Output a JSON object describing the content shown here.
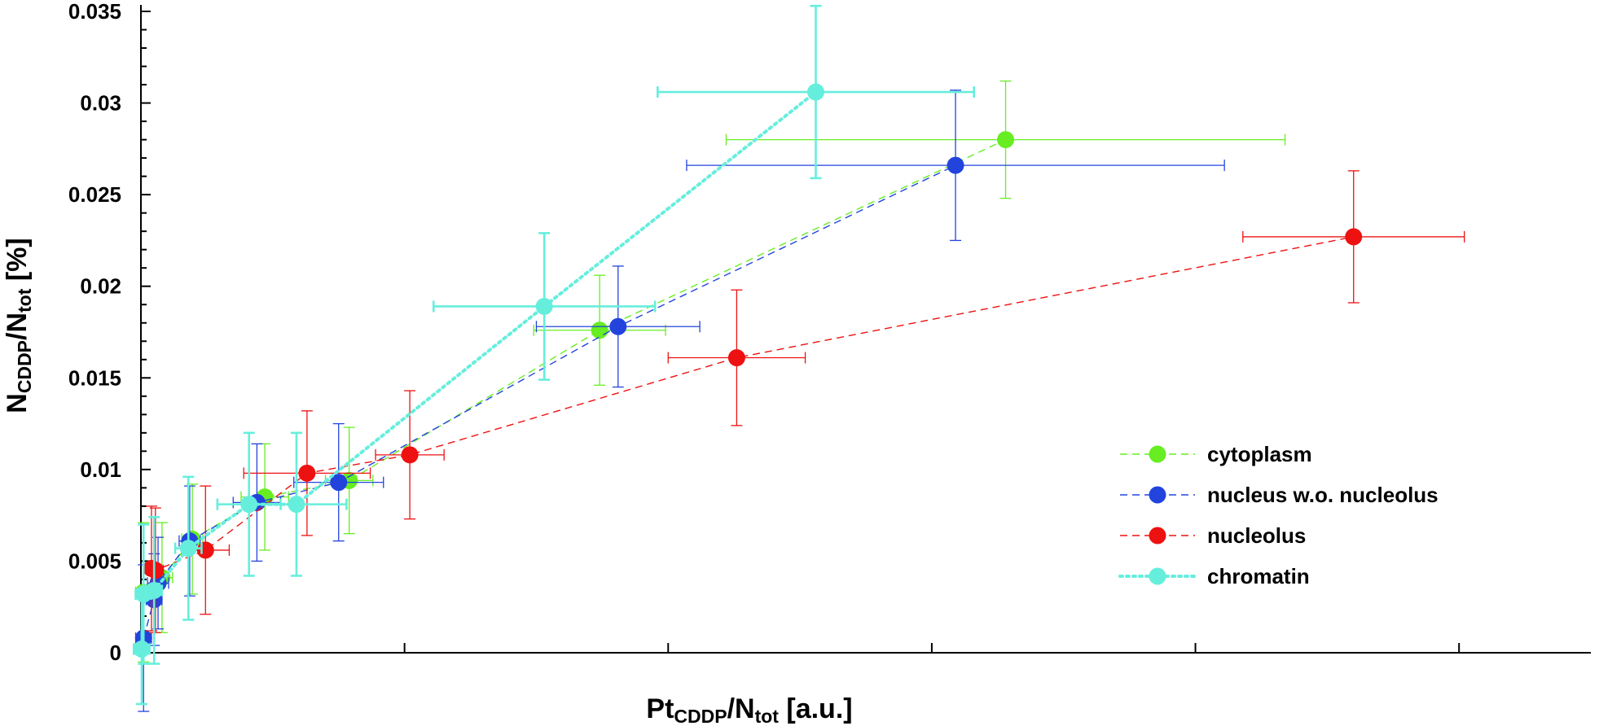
{
  "chart_data": {
    "type": "scatter",
    "title": "",
    "xlabel": {
      "base": "Pt",
      "sub": "CDDP",
      "mid": "/N",
      "sub2": "tot",
      "tail": " [a.u.]"
    },
    "ylabel": {
      "base": "N",
      "sub": "CDDP",
      "mid": "/N",
      "sub2": "tot",
      "tail": " [%]"
    },
    "xlim": [
      0,
      550
    ],
    "ylim": [
      0,
      0.035
    ],
    "x_ticks": [
      0,
      100,
      200,
      300,
      400,
      500
    ],
    "y_ticks": [
      0,
      0.005,
      0.01,
      0.015,
      0.02,
      0.025,
      0.03,
      0.035
    ],
    "y_tick_labels": [
      "0",
      "0.005",
      "0.01",
      "0.015",
      "0.02",
      "0.025",
      "0.03",
      "0.035"
    ],
    "grid": false,
    "legend_position": "right",
    "series": [
      {
        "name": "cytoplasm",
        "color": "#66ee22",
        "line": "dashed",
        "points": [
          {
            "x": 1,
            "y": 0.0033,
            "xerr": 3,
            "yerr": 0.0038
          },
          {
            "x": 8,
            "y": 0.0041,
            "xerr": 4,
            "yerr": 0.003
          },
          {
            "x": 19.5,
            "y": 0.0062,
            "xerr": 4,
            "yerr": 0.003
          },
          {
            "x": 47,
            "y": 0.0085,
            "xerr": 9,
            "yerr": 0.0029
          },
          {
            "x": 79,
            "y": 0.0094,
            "xerr": 9,
            "yerr": 0.0029
          },
          {
            "x": 174,
            "y": 0.0176,
            "xerr": 25,
            "yerr": 0.003
          },
          {
            "x": 328,
            "y": 0.028,
            "xerr": 106,
            "yerr": 0.0032
          }
        ]
      },
      {
        "name": "nucleus w.o. nucleolus",
        "color": "#2244dd",
        "line": "dashed",
        "points": [
          {
            "x": 1,
            "y": 0.0008,
            "xerr": 3,
            "yerr": 0.004
          },
          {
            "x": 5,
            "y": 0.0029,
            "xerr": 3,
            "yerr": 0.0025
          },
          {
            "x": 6.5,
            "y": 0.0038,
            "xerr": 4,
            "yerr": 0.0025
          },
          {
            "x": 18.5,
            "y": 0.0061,
            "xerr": 4,
            "yerr": 0.003
          },
          {
            "x": 44,
            "y": 0.0082,
            "xerr": 9,
            "yerr": 0.0032
          },
          {
            "x": 75,
            "y": 0.0093,
            "xerr": 17,
            "yerr": 0.0032
          },
          {
            "x": 181,
            "y": 0.0178,
            "xerr": 31,
            "yerr": 0.0033
          },
          {
            "x": 309,
            "y": 0.0266,
            "xerr": 102,
            "yerr": 0.0041
          }
        ]
      },
      {
        "name": "nucleolus",
        "color": "#ee1111",
        "line": "dashed",
        "points": [
          {
            "x": 4,
            "y": 0.0046,
            "xerr": 3,
            "yerr": 0.0034
          },
          {
            "x": 5.5,
            "y": 0.0045,
            "xerr": 3,
            "yerr": 0.0034
          },
          {
            "x": 24.5,
            "y": 0.0056,
            "xerr": 9,
            "yerr": 0.0035
          },
          {
            "x": 63,
            "y": 0.0098,
            "xerr": 24,
            "yerr": 0.0034
          },
          {
            "x": 102,
            "y": 0.0108,
            "xerr": 13,
            "yerr": 0.0035
          },
          {
            "x": 226,
            "y": 0.0161,
            "xerr": 26,
            "yerr": 0.0037
          },
          {
            "x": 460,
            "y": 0.0227,
            "xerr": 42,
            "yerr": 0.0036
          }
        ]
      },
      {
        "name": "chromatin",
        "color": "#66eedd",
        "line": "dotted",
        "points": [
          {
            "x": 0.3,
            "y": 0.0002,
            "xerr": 3,
            "yerr": 0.003
          },
          {
            "x": 1,
            "y": 0.0032,
            "xerr": 3,
            "yerr": 0.0038
          },
          {
            "x": 5,
            "y": 0.0034,
            "xerr": 3,
            "yerr": 0.004
          },
          {
            "x": 18,
            "y": 0.0057,
            "xerr": 5,
            "yerr": 0.0039
          },
          {
            "x": 41,
            "y": 0.0081,
            "xerr": 12,
            "yerr": 0.0039
          },
          {
            "x": 59,
            "y": 0.0081,
            "xerr": 19,
            "yerr": 0.0039
          },
          {
            "x": 153,
            "y": 0.0189,
            "xerr": 42,
            "yerr": 0.004
          },
          {
            "x": 256,
            "y": 0.0306,
            "xerr": 60,
            "yerr": 0.0047
          }
        ]
      }
    ]
  }
}
